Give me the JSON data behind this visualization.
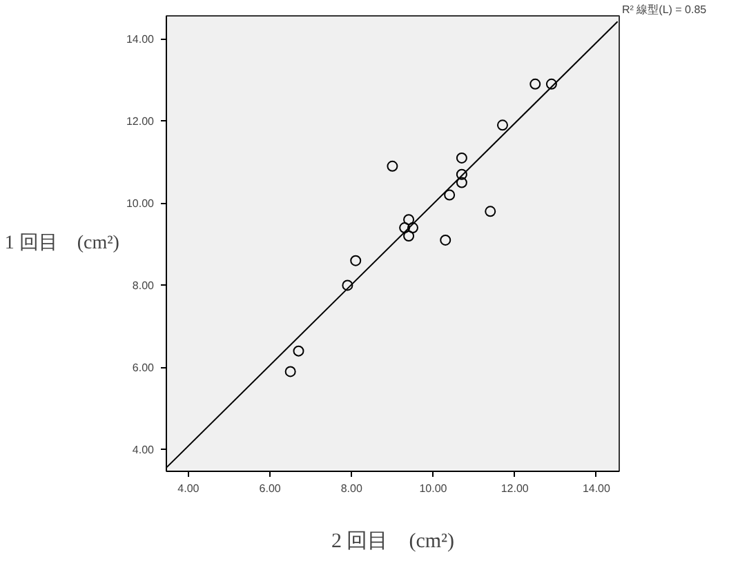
{
  "chart_data": {
    "type": "scatter",
    "xlabel": "2 回目　(cm²)",
    "ylabel": "1 回目　(cm²)",
    "xlim": [
      3.46,
      14.56
    ],
    "ylim": [
      3.47,
      14.56
    ],
    "xticks": [
      {
        "value": 4,
        "label": "4.00"
      },
      {
        "value": 6,
        "label": "6.00"
      },
      {
        "value": 8,
        "label": "8.00"
      },
      {
        "value": 10,
        "label": "10.00"
      },
      {
        "value": 12,
        "label": "12.00"
      },
      {
        "value": 14,
        "label": "14.00"
      }
    ],
    "yticks": [
      {
        "value": 4,
        "label": "4.00"
      },
      {
        "value": 6,
        "label": "6.00"
      },
      {
        "value": 8,
        "label": "8.00"
      },
      {
        "value": 10,
        "label": "10.00"
      },
      {
        "value": 12,
        "label": "12.00"
      },
      {
        "value": 14,
        "label": "14.00"
      }
    ],
    "grid": false,
    "marker": "circle",
    "series": [
      {
        "color": "#000000",
        "x": [
          9.0,
          12.5,
          12.9,
          11.7,
          10.7,
          10.7,
          10.7,
          10.4,
          11.4,
          9.4,
          9.3,
          9.5,
          9.4,
          10.3,
          8.1,
          7.9,
          6.7,
          6.5
        ],
        "values": [
          10.9,
          12.9,
          12.9,
          11.9,
          11.1,
          10.7,
          10.5,
          10.2,
          9.8,
          9.6,
          9.4,
          9.4,
          9.2,
          9.1,
          8.6,
          8.0,
          6.4,
          5.9
        ]
      },
      {
        "type": "line",
        "marker": "none",
        "color": "#000000",
        "x": [
          3.46,
          14.52
        ],
        "values": [
          3.56,
          14.42
        ]
      }
    ],
    "annotations": [
      "R² 線型(L) = 0.85"
    ]
  }
}
